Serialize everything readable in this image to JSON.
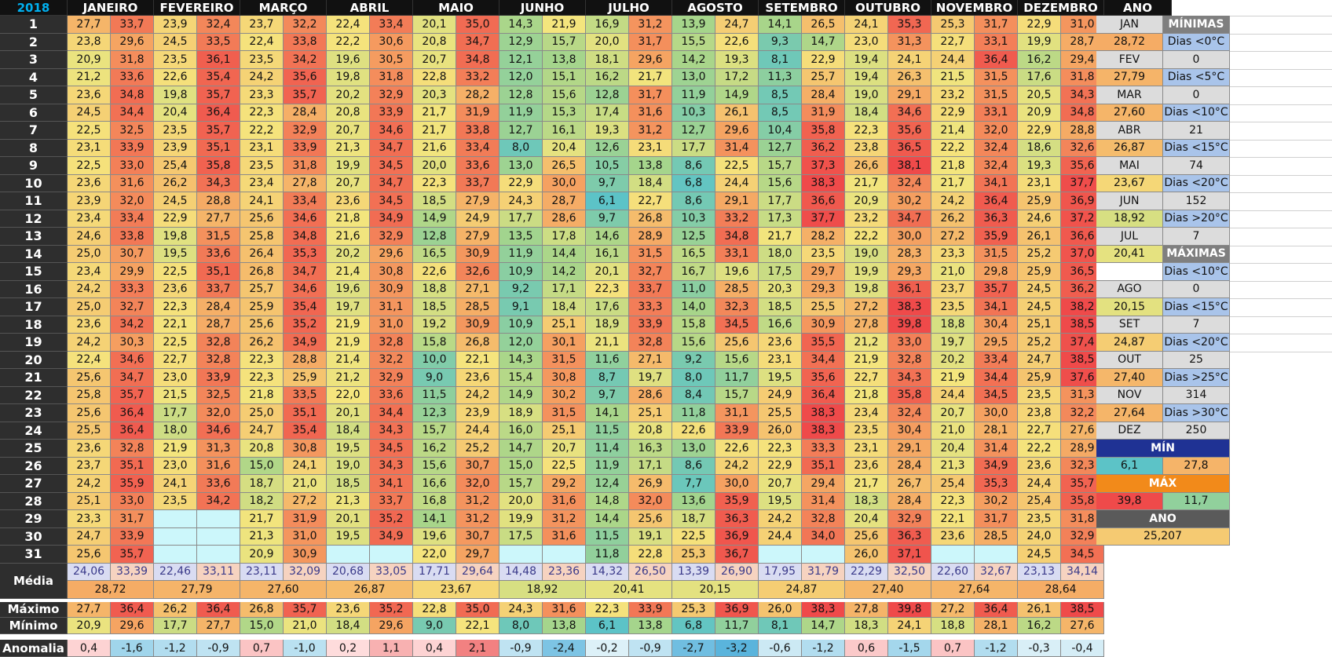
{
  "year": "2018",
  "months": [
    "JANEIRO",
    "FEVEREIRO",
    "MARÇO",
    "ABRIL",
    "MAIO",
    "JUNHO",
    "JULHO",
    "AGOSTO",
    "SETEMBRO",
    "OUTUBRO",
    "NOVEMBRO",
    "DEZEMBRO"
  ],
  "ano_header": "ANO",
  "days": [
    "1",
    "2",
    "3",
    "4",
    "5",
    "6",
    "7",
    "8",
    "9",
    "10",
    "11",
    "12",
    "13",
    "14",
    "15",
    "16",
    "17",
    "18",
    "19",
    "20",
    "21",
    "22",
    "23",
    "24",
    "25",
    "26",
    "27",
    "28",
    "29",
    "30",
    "31"
  ],
  "data": [
    [
      "27,7",
      "33,7",
      "23,9",
      "32,4",
      "23,7",
      "32,2",
      "22,4",
      "33,4",
      "20,1",
      "35,0",
      "14,3",
      "21,9",
      "16,9",
      "31,2",
      "13,9",
      "24,7",
      "14,1",
      "26,5",
      "24,1",
      "35,3",
      "25,3",
      "31,7",
      "22,9",
      "31,0"
    ],
    [
      "23,8",
      "29,6",
      "24,5",
      "33,5",
      "22,4",
      "33,8",
      "22,2",
      "30,6",
      "20,8",
      "34,7",
      "12,9",
      "15,7",
      "20,0",
      "31,7",
      "15,5",
      "22,6",
      "9,3",
      "14,7",
      "23,0",
      "31,3",
      "22,7",
      "33,1",
      "19,9",
      "28,7"
    ],
    [
      "20,9",
      "31,8",
      "23,5",
      "36,1",
      "23,5",
      "34,2",
      "19,6",
      "30,5",
      "20,7",
      "34,8",
      "12,1",
      "13,8",
      "18,1",
      "29,6",
      "14,2",
      "19,3",
      "8,1",
      "22,9",
      "19,4",
      "24,1",
      "24,4",
      "36,4",
      "16,2",
      "29,4"
    ],
    [
      "21,2",
      "33,6",
      "22,6",
      "35,4",
      "24,2",
      "35,6",
      "19,8",
      "31,8",
      "22,8",
      "33,2",
      "12,0",
      "15,1",
      "16,2",
      "21,7",
      "13,0",
      "17,2",
      "11,3",
      "25,7",
      "19,4",
      "26,3",
      "21,5",
      "31,5",
      "17,6",
      "31,8"
    ],
    [
      "23,6",
      "34,8",
      "19,8",
      "35,7",
      "23,3",
      "35,7",
      "20,2",
      "32,9",
      "20,3",
      "28,2",
      "12,8",
      "15,6",
      "12,8",
      "31,7",
      "11,9",
      "14,9",
      "8,5",
      "28,4",
      "19,0",
      "29,1",
      "23,2",
      "31,5",
      "20,5",
      "34,3"
    ],
    [
      "24,5",
      "34,4",
      "20,4",
      "36,4",
      "22,3",
      "28,4",
      "20,8",
      "33,9",
      "21,7",
      "31,9",
      "11,9",
      "15,3",
      "17,4",
      "31,6",
      "10,3",
      "26,1",
      "8,5",
      "31,9",
      "18,4",
      "34,6",
      "22,9",
      "33,1",
      "20,9",
      "34,8"
    ],
    [
      "22,5",
      "32,5",
      "23,5",
      "35,7",
      "22,2",
      "32,9",
      "20,7",
      "34,6",
      "21,7",
      "33,8",
      "12,7",
      "16,1",
      "19,3",
      "31,2",
      "12,7",
      "29,6",
      "10,4",
      "35,8",
      "22,3",
      "35,6",
      "21,4",
      "32,0",
      "22,9",
      "28,8"
    ],
    [
      "23,1",
      "33,9",
      "23,9",
      "35,1",
      "23,1",
      "33,9",
      "21,3",
      "34,7",
      "21,6",
      "33,4",
      "8,0",
      "20,4",
      "12,6",
      "23,1",
      "17,7",
      "31,4",
      "12,7",
      "36,2",
      "23,8",
      "36,5",
      "22,2",
      "32,4",
      "18,6",
      "32,6"
    ],
    [
      "22,5",
      "33,0",
      "25,4",
      "35,8",
      "23,5",
      "31,8",
      "19,9",
      "34,5",
      "20,0",
      "33,6",
      "13,0",
      "26,5",
      "10,5",
      "13,8",
      "8,6",
      "22,5",
      "15,7",
      "37,3",
      "26,6",
      "38,1",
      "21,8",
      "32,4",
      "19,3",
      "35,6"
    ],
    [
      "23,6",
      "31,6",
      "26,2",
      "34,3",
      "23,4",
      "27,8",
      "20,7",
      "34,7",
      "22,3",
      "33,7",
      "22,9",
      "30,0",
      "9,7",
      "18,4",
      "6,8",
      "24,4",
      "15,6",
      "38,3",
      "21,7",
      "32,4",
      "21,7",
      "34,1",
      "23,1",
      "37,7"
    ],
    [
      "23,9",
      "32,0",
      "24,5",
      "28,8",
      "24,1",
      "33,4",
      "23,6",
      "34,5",
      "18,5",
      "27,9",
      "24,3",
      "28,7",
      "6,1",
      "22,7",
      "8,6",
      "29,1",
      "17,7",
      "36,6",
      "20,9",
      "30,2",
      "24,2",
      "36,4",
      "25,9",
      "36,9"
    ],
    [
      "23,4",
      "33,4",
      "22,9",
      "27,7",
      "25,6",
      "34,6",
      "21,8",
      "34,9",
      "14,9",
      "24,9",
      "17,7",
      "28,6",
      "9,7",
      "26,8",
      "10,3",
      "33,2",
      "17,3",
      "37,7",
      "23,2",
      "34,7",
      "26,2",
      "36,3",
      "24,6",
      "37,2"
    ],
    [
      "24,6",
      "33,8",
      "19,8",
      "31,5",
      "25,8",
      "34,8",
      "21,6",
      "32,9",
      "12,8",
      "27,9",
      "13,5",
      "17,8",
      "14,6",
      "28,9",
      "12,5",
      "34,8",
      "21,7",
      "28,2",
      "22,2",
      "30,0",
      "27,2",
      "35,9",
      "26,1",
      "36,6"
    ],
    [
      "25,0",
      "30,7",
      "19,5",
      "33,6",
      "26,4",
      "35,3",
      "20,2",
      "29,6",
      "16,5",
      "30,9",
      "11,9",
      "14,4",
      "16,1",
      "31,5",
      "16,5",
      "33,1",
      "18,0",
      "23,5",
      "19,0",
      "28,3",
      "23,3",
      "31,5",
      "25,2",
      "37,0"
    ],
    [
      "23,4",
      "29,9",
      "22,5",
      "35,1",
      "26,8",
      "34,7",
      "21,4",
      "30,8",
      "22,6",
      "32,6",
      "10,9",
      "14,2",
      "20,1",
      "32,7",
      "16,7",
      "19,6",
      "17,5",
      "29,7",
      "19,9",
      "29,3",
      "21,0",
      "29,8",
      "25,9",
      "36,5"
    ],
    [
      "24,2",
      "33,3",
      "23,6",
      "33,7",
      "25,7",
      "34,6",
      "19,6",
      "30,9",
      "18,8",
      "27,1",
      "9,2",
      "17,1",
      "22,3",
      "33,7",
      "11,0",
      "28,5",
      "20,3",
      "29,3",
      "19,8",
      "36,1",
      "23,7",
      "35,7",
      "24,5",
      "36,2"
    ],
    [
      "25,0",
      "32,7",
      "22,3",
      "28,4",
      "25,9",
      "35,4",
      "19,7",
      "31,1",
      "18,5",
      "28,5",
      "9,1",
      "18,4",
      "17,6",
      "33,3",
      "14,0",
      "32,3",
      "18,5",
      "25,5",
      "27,2",
      "38,3",
      "23,5",
      "34,1",
      "24,5",
      "38,2"
    ],
    [
      "23,6",
      "34,2",
      "22,1",
      "28,7",
      "25,6",
      "35,2",
      "21,9",
      "31,0",
      "19,2",
      "30,9",
      "10,9",
      "25,1",
      "18,9",
      "33,9",
      "15,8",
      "34,5",
      "16,6",
      "30,9",
      "27,8",
      "39,8",
      "18,8",
      "30,4",
      "25,1",
      "38,5"
    ],
    [
      "24,2",
      "30,3",
      "22,5",
      "32,8",
      "26,2",
      "34,9",
      "21,9",
      "32,8",
      "15,8",
      "26,8",
      "12,0",
      "30,1",
      "21,1",
      "32,8",
      "15,6",
      "25,6",
      "23,6",
      "35,5",
      "21,2",
      "33,0",
      "19,7",
      "29,5",
      "25,2",
      "37,4"
    ],
    [
      "22,4",
      "34,6",
      "22,7",
      "32,8",
      "22,3",
      "28,8",
      "21,4",
      "32,2",
      "10,0",
      "22,1",
      "14,3",
      "31,5",
      "11,6",
      "27,1",
      "9,2",
      "15,6",
      "23,1",
      "34,4",
      "21,9",
      "32,8",
      "20,2",
      "33,4",
      "24,7",
      "38,5"
    ],
    [
      "25,6",
      "34,7",
      "23,0",
      "33,9",
      "22,3",
      "25,9",
      "21,2",
      "32,9",
      "9,0",
      "23,6",
      "15,4",
      "30,8",
      "8,7",
      "19,7",
      "8,0",
      "11,7",
      "19,5",
      "35,6",
      "22,7",
      "34,3",
      "21,9",
      "34,4",
      "25,9",
      "37,6"
    ],
    [
      "25,8",
      "35,7",
      "21,5",
      "32,5",
      "21,8",
      "33,5",
      "22,0",
      "33,6",
      "11,5",
      "24,2",
      "14,9",
      "30,2",
      "9,7",
      "28,6",
      "8,4",
      "15,7",
      "24,9",
      "36,4",
      "21,8",
      "35,8",
      "24,4",
      "34,5",
      "23,5",
      "31,3"
    ],
    [
      "25,6",
      "36,4",
      "17,7",
      "32,0",
      "25,0",
      "35,1",
      "20,1",
      "34,4",
      "12,3",
      "23,9",
      "18,9",
      "31,5",
      "14,1",
      "25,1",
      "11,8",
      "31,1",
      "25,5",
      "38,3",
      "23,4",
      "32,4",
      "20,7",
      "30,0",
      "23,8",
      "32,2"
    ],
    [
      "25,5",
      "36,4",
      "18,0",
      "34,6",
      "24,7",
      "35,4",
      "18,4",
      "34,3",
      "15,7",
      "24,4",
      "16,0",
      "25,1",
      "11,5",
      "20,8",
      "22,6",
      "33,9",
      "26,0",
      "38,3",
      "23,5",
      "30,4",
      "21,0",
      "28,1",
      "22,7",
      "27,6"
    ],
    [
      "23,6",
      "32,8",
      "21,9",
      "31,3",
      "20,8",
      "30,8",
      "19,5",
      "34,5",
      "16,2",
      "25,2",
      "14,7",
      "20,7",
      "11,4",
      "16,3",
      "13,0",
      "22,6",
      "22,3",
      "33,3",
      "23,1",
      "29,1",
      "20,4",
      "31,4",
      "22,2",
      "28,9"
    ],
    [
      "23,7",
      "35,1",
      "23,0",
      "31,6",
      "15,0",
      "24,1",
      "19,0",
      "34,3",
      "15,6",
      "30,7",
      "15,0",
      "22,5",
      "11,9",
      "17,1",
      "8,6",
      "24,2",
      "22,9",
      "35,1",
      "23,6",
      "28,4",
      "21,3",
      "34,9",
      "23,6",
      "32,3"
    ],
    [
      "24,2",
      "35,9",
      "24,1",
      "33,6",
      "18,7",
      "21,0",
      "18,5",
      "34,1",
      "16,6",
      "32,0",
      "15,7",
      "29,2",
      "12,4",
      "26,9",
      "7,7",
      "30,0",
      "20,7",
      "29,4",
      "21,7",
      "26,7",
      "25,4",
      "35,3",
      "24,4",
      "35,7"
    ],
    [
      "25,1",
      "33,0",
      "23,5",
      "34,2",
      "18,2",
      "27,2",
      "21,3",
      "33,7",
      "16,8",
      "31,2",
      "20,0",
      "31,6",
      "14,8",
      "32,0",
      "13,6",
      "35,9",
      "19,5",
      "31,4",
      "18,3",
      "28,4",
      "22,3",
      "30,2",
      "25,4",
      "35,8"
    ],
    [
      "23,3",
      "31,7",
      "",
      "",
      "21,7",
      "31,9",
      "20,1",
      "35,2",
      "14,1",
      "31,2",
      "19,9",
      "31,2",
      "14,4",
      "25,6",
      "18,7",
      "36,3",
      "24,2",
      "32,8",
      "20,4",
      "32,9",
      "22,1",
      "31,7",
      "23,5",
      "31,8"
    ],
    [
      "24,7",
      "33,9",
      "",
      "",
      "21,3",
      "31,0",
      "19,5",
      "34,9",
      "19,6",
      "30,7",
      "17,5",
      "31,6",
      "11,5",
      "19,1",
      "22,5",
      "36,9",
      "24,4",
      "34,0",
      "25,6",
      "36,3",
      "23,6",
      "28,5",
      "24,0",
      "32,9"
    ],
    [
      "25,6",
      "35,7",
      "",
      "",
      "20,9",
      "30,9",
      "",
      "",
      "22,0",
      "29,7",
      "",
      "",
      "11,8",
      "22,8",
      "25,3",
      "36,7",
      "",
      "",
      "26,0",
      "37,1",
      "",
      "",
      "24,5",
      "34,5"
    ]
  ],
  "media_label": "Média",
  "media_row": [
    "24,06",
    "33,39",
    "22,46",
    "33,11",
    "23,11",
    "32,09",
    "20,68",
    "33,05",
    "17,71",
    "29,64",
    "14,48",
    "23,36",
    "14,32",
    "26,50",
    "13,39",
    "26,90",
    "17,95",
    "31,79",
    "22,29",
    "32,50",
    "22,60",
    "32,67",
    "23,13",
    "34,14"
  ],
  "media_month": [
    "28,72",
    "27,79",
    "27,60",
    "26,87",
    "23,67",
    "18,92",
    "20,41",
    "20,15",
    "24,87",
    "27,40",
    "27,64",
    "28,64"
  ],
  "maximo_label": "Máximo",
  "maximo_row": [
    "27,7",
    "36,4",
    "26,2",
    "36,4",
    "26,8",
    "35,7",
    "23,6",
    "35,2",
    "22,8",
    "35,0",
    "24,3",
    "31,6",
    "22,3",
    "33,9",
    "25,3",
    "36,9",
    "26,0",
    "38,3",
    "27,8",
    "39,8",
    "27,2",
    "36,4",
    "26,1",
    "38,5"
  ],
  "minimo_label": "Mínimo",
  "minimo_row": [
    "20,9",
    "29,6",
    "17,7",
    "27,7",
    "15,0",
    "21,0",
    "18,4",
    "29,6",
    "9,0",
    "22,1",
    "8,0",
    "13,8",
    "6,1",
    "13,8",
    "6,8",
    "11,7",
    "8,1",
    "14,7",
    "18,3",
    "24,1",
    "18,8",
    "28,1",
    "16,2",
    "27,6"
  ],
  "anomalia_label": "Anomalia",
  "anomalia_row": [
    "0,4",
    "-1,6",
    "-1,2",
    "-0,9",
    "0,7",
    "-1,0",
    "0,2",
    "1,1",
    "0,4",
    "2,1",
    "-0,9",
    "-2,4",
    "-0,2",
    "-0,9",
    "-2,7",
    "-3,2",
    "-0,6",
    "-1,2",
    "0,6",
    "-1,5",
    "0,7",
    "-1,2",
    "-0,3",
    "-0,4"
  ],
  "side_left": [
    "JAN",
    "28,72",
    "FEV",
    "27,79",
    "MAR",
    "27,60",
    "ABR",
    "26,87",
    "MAI",
    "23,67",
    "JUN",
    "18,92",
    "JUL",
    "20,41",
    "",
    "AGO",
    "20,15",
    "SET",
    "24,87",
    "OUT",
    "27,40",
    "NOV",
    "27,64",
    "DEZ",
    "28,64"
  ],
  "side_right": [
    "MÍNIMAS",
    "Dias <0°C",
    "0",
    "Dias <5°C",
    "0",
    "Dias <10°C",
    "21",
    "Dias <15°C",
    "74",
    "Dias <20°C",
    "152",
    "Dias >20°C",
    "7",
    "MÁXIMAS",
    "Dias <10°C",
    "0",
    "Dias <15°C",
    "7",
    "Dias <20°C",
    "25",
    "Dias >25°C",
    "314",
    "Dias >30°C",
    "250"
  ],
  "min_box": {
    "title": "MÍN",
    "left": "6,1",
    "right": "27,8"
  },
  "max_box": {
    "title": "MÁX",
    "left": "39,8",
    "right": "11,7"
  },
  "ano_box": {
    "title": "ANO",
    "value": "25,207"
  },
  "colors": {
    "cold": "#5bc3c8",
    "mid_green": "#a7d58a",
    "yellow": "#f5e57d",
    "orange": "#f5a161",
    "hot": "#ef4a4a",
    "header_bg": "#111111",
    "year_text": "#00b0f0",
    "min_header": "#1f3294",
    "max_header": "#f28a1a",
    "ano_header": "#5a5a5a"
  }
}
